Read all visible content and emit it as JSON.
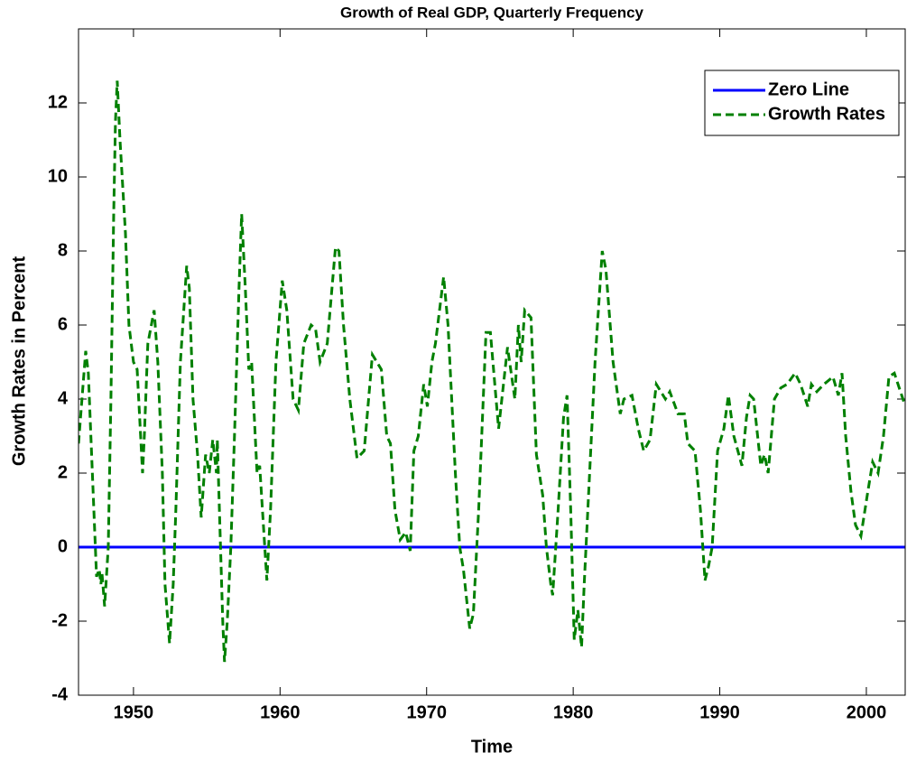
{
  "chart_data": {
    "type": "line",
    "title": "Growth of Real GDP, Quarterly Frequency",
    "xlabel": "Time",
    "ylabel": "Growth Rates in Percent",
    "xlim": [
      1946.25,
      2002.65
    ],
    "xticks": [
      1950,
      1960,
      1970,
      1980,
      1990,
      2000
    ],
    "ylim": [
      -4,
      14
    ],
    "yticks": [
      -4,
      -2,
      0,
      2,
      4,
      6,
      8,
      10,
      12
    ],
    "legend": "northeast",
    "grid": false,
    "series": [
      {
        "name": "Zero Line",
        "color": "#0000ff",
        "dash": "solid",
        "x": [
          1946.25,
          2002.65
        ],
        "values": [
          0,
          0
        ]
      },
      {
        "name": "Growth Rates",
        "color": "#008000",
        "dash": "dashed",
        "x": [
          1946.25,
          1946.74,
          1946.92,
          1947.48,
          1947.66,
          1947.78,
          1947.85,
          1948.03,
          1948.28,
          1948.46,
          1948.65,
          1948.77,
          1948.89,
          1949.08,
          1949.45,
          1949.69,
          1950.0,
          1950.25,
          1950.62,
          1950.74,
          1950.98,
          1951.41,
          1951.66,
          1951.97,
          1952.15,
          1952.46,
          1952.71,
          1952.89,
          1953.2,
          1953.63,
          1953.81,
          1954.06,
          1954.37,
          1954.62,
          1954.92,
          1955.17,
          1955.41,
          1955.66,
          1955.72,
          1955.9,
          1956.09,
          1956.21,
          1956.4,
          1956.64,
          1956.89,
          1957.2,
          1957.38,
          1957.63,
          1957.87,
          1958.06,
          1958.43,
          1958.61,
          1959.1,
          1959.35,
          1959.72,
          1960.15,
          1960.46,
          1960.89,
          1961.25,
          1961.62,
          1962.12,
          1962.42,
          1962.73,
          1963.22,
          1963.78,
          1964.02,
          1964.33,
          1964.76,
          1965.25,
          1965.74,
          1966.3,
          1966.91,
          1967.28,
          1967.53,
          1967.84,
          1968.2,
          1968.57,
          1968.88,
          1969.13,
          1969.43,
          1969.8,
          1970.05,
          1970.36,
          1970.6,
          1971.16,
          1971.46,
          1971.96,
          1972.26,
          1972.51,
          1972.94,
          1973.19,
          1973.55,
          1974.05,
          1974.35,
          1974.91,
          1975.52,
          1976.02,
          1976.26,
          1976.45,
          1976.69,
          1977.12,
          1977.49,
          1977.92,
          1978.17,
          1978.47,
          1978.6,
          1978.97,
          1979.34,
          1979.58,
          1979.83,
          1980.07,
          1980.32,
          1980.57,
          1980.75,
          1981.12,
          1981.49,
          1981.98,
          1982.23,
          1982.72,
          1983.21,
          1983.46,
          1984.01,
          1984.44,
          1984.81,
          1985.24,
          1985.67,
          1986.29,
          1986.59,
          1987.15,
          1987.58,
          1987.82,
          1988.31,
          1988.68,
          1988.99,
          1989.24,
          1989.48,
          1989.85,
          1990.28,
          1990.59,
          1990.96,
          1991.51,
          1991.82,
          1992.07,
          1992.31,
          1992.8,
          1993.05,
          1993.3,
          1993.73,
          1994.16,
          1994.59,
          1995.14,
          1995.51,
          1996.0,
          1996.25,
          1996.62,
          1997.11,
          1997.72,
          1998.09,
          1998.34,
          1998.59,
          1998.95,
          1999.26,
          1999.63,
          2000.06,
          2000.43,
          2000.8,
          2001.17,
          2001.54,
          2001.91,
          2002.58
        ],
        "values": [
          2.8,
          5.3,
          4.7,
          -0.8,
          -0.6,
          -1,
          -0.7,
          -1.6,
          0,
          4,
          9,
          11.5,
          12.6,
          11,
          8.5,
          6,
          5,
          4.8,
          2,
          3,
          5.5,
          6.4,
          5,
          2,
          -1,
          -2.6,
          -1,
          1,
          5,
          7.6,
          7,
          4,
          2.5,
          0.8,
          2.5,
          2,
          2.9,
          2,
          2.9,
          0.5,
          -2,
          -3.1,
          -2,
          0,
          3,
          7,
          9,
          7,
          4.8,
          5,
          2,
          2.2,
          -0.9,
          1,
          5,
          7.2,
          6.4,
          4,
          3.7,
          5.5,
          6,
          5.9,
          5,
          5.5,
          8.1,
          8,
          6,
          4,
          2.4,
          2.6,
          5.2,
          4.8,
          3,
          2.8,
          1,
          0.2,
          0.4,
          -0.1,
          2.6,
          3,
          4.4,
          3.8,
          5,
          5.5,
          7.3,
          6,
          2,
          0,
          -0.6,
          -2.2,
          -1.8,
          1,
          5.8,
          5.8,
          3.2,
          5.4,
          4,
          6,
          5,
          6.4,
          6.2,
          2.5,
          1.4,
          0,
          -1,
          -1.3,
          1,
          3.5,
          4.1,
          1,
          -2.5,
          -1.7,
          -2.7,
          -1,
          2,
          5,
          8,
          7.5,
          5,
          3.6,
          4,
          4.1,
          3.2,
          2.6,
          2.9,
          4.4,
          4,
          4.2,
          3.6,
          3.6,
          2.8,
          2.6,
          1,
          -0.9,
          -0.5,
          0,
          2.6,
          3.2,
          4.1,
          3,
          2.2,
          3.5,
          4.1,
          4,
          2.2,
          2.5,
          2,
          4,
          4.3,
          4.4,
          4.7,
          4.4,
          3.8,
          4.4,
          4.2,
          4.4,
          4.6,
          4.1,
          4.7,
          3,
          1.5,
          0.6,
          0.3,
          1.4,
          2.3,
          2,
          3,
          4.6,
          4.7,
          3.9
        ]
      }
    ]
  }
}
